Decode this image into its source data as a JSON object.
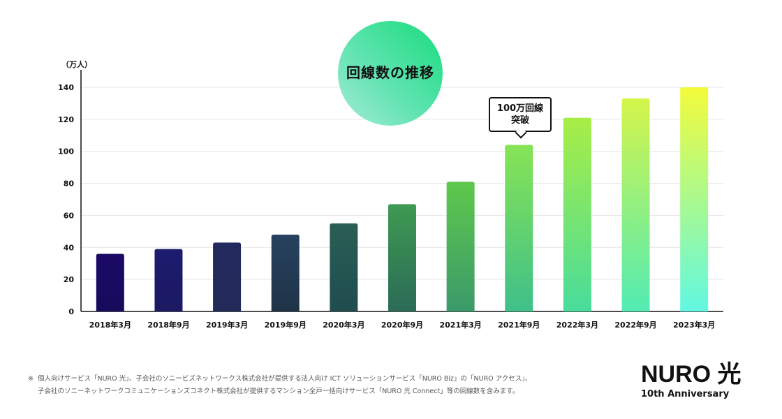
{
  "chart_data": {
    "type": "bar",
    "title": "回線数の推移",
    "ylabel": "（万人）",
    "xlabel": "",
    "categories": [
      "2018年3月",
      "2018年9月",
      "2019年3月",
      "2019年9月",
      "2020年3月",
      "2020年9月",
      "2021年3月",
      "2021年9月",
      "2022年3月",
      "2022年9月",
      "2023年3月"
    ],
    "values": [
      36,
      39,
      43,
      48,
      55,
      67,
      81,
      104,
      121,
      133,
      140
    ],
    "ylim": [
      0,
      140
    ],
    "yticks": [
      0,
      20,
      40,
      60,
      80,
      100,
      120,
      140
    ],
    "grid": true,
    "bar_colors": [
      {
        "top": "#1a0a66",
        "bottom": "#170b5c"
      },
      {
        "top": "#1d1b6e",
        "bottom": "#1b1a62"
      },
      {
        "top": "#22295e",
        "bottom": "#212a58"
      },
      {
        "top": "#274260",
        "bottom": "#1f3347"
      },
      {
        "top": "#2b5e56",
        "bottom": "#1f4d4d"
      },
      {
        "top": "#3e9a52",
        "bottom": "#2b6b57"
      },
      {
        "top": "#5ec84c",
        "bottom": "#3a9a6a"
      },
      {
        "top": "#86e455",
        "bottom": "#3fc08a"
      },
      {
        "top": "#a8ee45",
        "bottom": "#48dc9c"
      },
      {
        "top": "#d5f54a",
        "bottom": "#52ebb4"
      },
      {
        "top": "#f3fb3a",
        "bottom": "#62f7e2"
      }
    ]
  },
  "callout": {
    "line1": "100万回線",
    "line2": "突破",
    "category_index": 7
  },
  "footnote": {
    "mark": "※",
    "line1": "個人向けサービス「NURO 光」、子会社のソニービズネットワークス株式会社が提供する法人向け ICT ソリューションサービス「NURO Biz」の「NURO アクセス」、",
    "line2": "子会社のソニーネットワークコミュニケーションズコネクト株式会社が提供するマンション全戸一括向けサービス「NURO 光 Connect」等の回線数を含みます。"
  },
  "logo": {
    "main": "NURO 光",
    "sub": "10th Anniversary"
  }
}
